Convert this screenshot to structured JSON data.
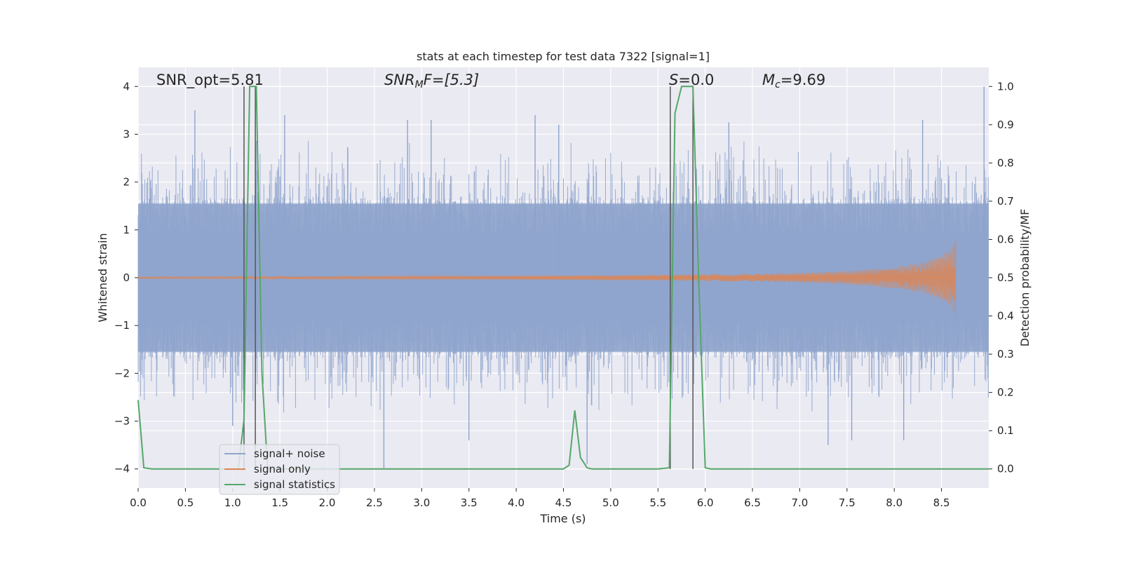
{
  "chart_data": {
    "type": "line",
    "title": "stats at each timestep for test data 7322 [signal=1]",
    "xlabel": "Time (s)",
    "ylabel": "Whitened strain",
    "y2label": "Detection probability/MF",
    "xlim": [
      0.0,
      9.0
    ],
    "ylim": [
      -4.4,
      4.4
    ],
    "y2lim": [
      -0.05,
      1.05
    ],
    "x_ticks": [
      "0.0",
      "0.5",
      "1.0",
      "1.5",
      "2.0",
      "2.5",
      "3.0",
      "3.5",
      "4.0",
      "4.5",
      "5.0",
      "5.5",
      "6.0",
      "6.5",
      "7.0",
      "7.5",
      "8.0",
      "8.5"
    ],
    "y_ticks": [
      "−4",
      "−3",
      "−2",
      "−1",
      "0",
      "1",
      "2",
      "3",
      "4"
    ],
    "y2_ticks": [
      "0.0",
      "0.1",
      "0.2",
      "0.3",
      "0.4",
      "0.5",
      "0.6",
      "0.7",
      "0.8",
      "0.9",
      "1.0"
    ],
    "grid": true,
    "legend_placement": "lower-left",
    "annotations": {
      "snr_opt": "SNR_opt=5.81",
      "snr_mf_base": "SNR",
      "snr_mf_sub": "M",
      "snr_mf_rest": "F=[5.3]",
      "s_label": "S",
      "s_rest": "=0.0",
      "mc_base": "M",
      "mc_sub": "c",
      "mc_rest": "=9.69"
    },
    "series": [
      {
        "name": "signal+ noise",
        "color": "#8fa4cc",
        "description": "dense whitened noise between about -2 and +2 with spikes up to ±4",
        "sample_peaks": [
          [
            0.6,
            3.5
          ],
          [
            1.55,
            3.4
          ],
          [
            2.85,
            3.3
          ],
          [
            3.1,
            3.3
          ],
          [
            4.2,
            3.4
          ],
          [
            4.45,
            3.2
          ],
          [
            6.25,
            3.25
          ],
          [
            8.3,
            3.3
          ],
          [
            8.95,
            4.0
          ],
          [
            1.0,
            -3.1
          ],
          [
            2.6,
            -4.0
          ],
          [
            3.5,
            -3.4
          ],
          [
            4.75,
            -3.9
          ],
          [
            7.3,
            -3.5
          ],
          [
            7.55,
            -3.4
          ],
          [
            8.1,
            -3.4
          ]
        ]
      },
      {
        "name": "signal only",
        "color": "#dd8452",
        "description": "chirp with growing amplitude ending near 8.65 s",
        "envelope": [
          [
            0.0,
            0.02
          ],
          [
            2.0,
            0.03
          ],
          [
            4.0,
            0.04
          ],
          [
            5.5,
            0.06
          ],
          [
            6.5,
            0.08
          ],
          [
            7.0,
            0.1
          ],
          [
            7.5,
            0.14
          ],
          [
            8.0,
            0.22
          ],
          [
            8.3,
            0.32
          ],
          [
            8.5,
            0.45
          ],
          [
            8.6,
            0.6
          ],
          [
            8.65,
            0.85
          ]
        ],
        "end_time": 8.65
      },
      {
        "name": "signal statistics",
        "color": "#55a868",
        "axis": "right",
        "x": [
          0.0,
          0.06,
          0.15,
          0.5,
          1.0,
          1.06,
          1.12,
          1.18,
          1.25,
          1.31,
          1.37,
          1.4,
          2.0,
          3.0,
          4.0,
          4.5,
          4.56,
          4.62,
          4.68,
          4.75,
          4.8,
          5.0,
          5.5,
          5.62,
          5.68,
          5.75,
          5.87,
          5.93,
          6.0,
          6.06,
          7.0,
          8.0,
          9.0
        ],
        "values": [
          0.18,
          0.003,
          0.0,
          0.0,
          0.0,
          0.0,
          0.13,
          1.0,
          1.0,
          0.25,
          0.0,
          0.0,
          0.0,
          0.0,
          0.0,
          0.0,
          0.01,
          0.153,
          0.03,
          0.003,
          0.0,
          0.0,
          0.0,
          0.003,
          0.93,
          1.0,
          1.0,
          0.5,
          0.003,
          0.0,
          0.0,
          0.0,
          0.0
        ]
      }
    ],
    "vertical_lines": [
      1.12,
      1.24,
      5.63,
      5.87
    ],
    "legend": [
      {
        "label": "signal+ noise",
        "color": "#8fa4cc"
      },
      {
        "label": "signal only",
        "color": "#dd8452"
      },
      {
        "label": "signal statistics",
        "color": "#55a868"
      }
    ]
  }
}
